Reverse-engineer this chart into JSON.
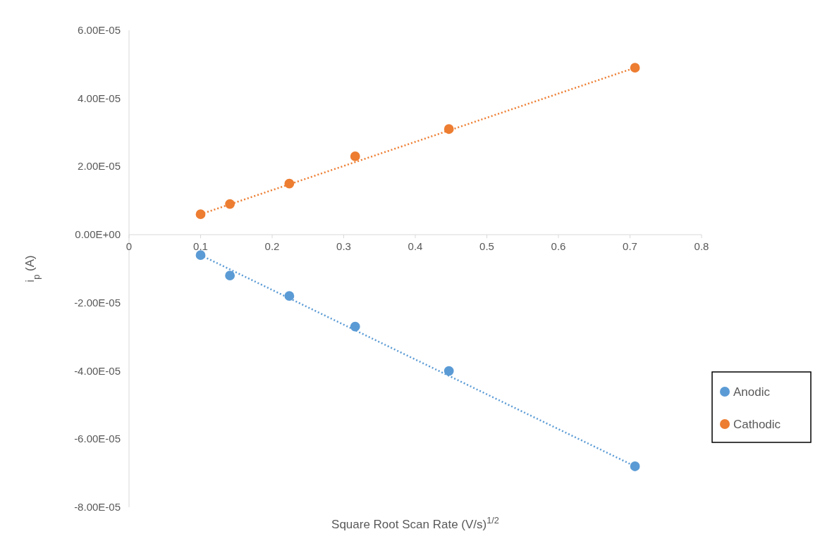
{
  "chart_data": {
    "type": "scatter",
    "xlabel": "Square Root Scan Rate (V/s)$^{1/2}$",
    "ylabel": "i$_{p}$ (A)",
    "xlim": [
      0,
      0.8
    ],
    "xticks": [
      0,
      0.1,
      0.2,
      0.3,
      0.4,
      0.5,
      0.6,
      0.7,
      0.8
    ],
    "ylim": [
      -8e-05,
      6e-05
    ],
    "yticks": [
      {
        "value": -8e-05,
        "label": "-8.00E-05"
      },
      {
        "value": -6e-05,
        "label": "-6.00E-05"
      },
      {
        "value": -4e-05,
        "label": "-4.00E-05"
      },
      {
        "value": -2e-05,
        "label": "-2.00E-05"
      },
      {
        "value": 0,
        "label": "0.00E+00"
      },
      {
        "value": 2e-05,
        "label": "2.00E-05"
      },
      {
        "value": 4e-05,
        "label": "4.00E-05"
      },
      {
        "value": 6e-05,
        "label": "6.00E-05"
      }
    ],
    "grid": false,
    "legend": "right",
    "line_style": "dotted",
    "series": [
      {
        "name": "Anodic",
        "color": "#5b9bd5",
        "marker": "circle",
        "x": [
          0.1,
          0.141,
          0.224,
          0.316,
          0.447,
          0.707
        ],
        "values": [
          -6e-06,
          -1.2e-05,
          -1.8e-05,
          -2.7e-05,
          -4e-05,
          -6.8e-05
        ]
      },
      {
        "name": "Cathodic",
        "color": "#ed7d31",
        "marker": "circle",
        "x": [
          0.1,
          0.141,
          0.224,
          0.316,
          0.447,
          0.707
        ],
        "values": [
          6e-06,
          9e-06,
          1.5e-05,
          2.3e-05,
          3.1e-05,
          4.9e-05
        ]
      },
      {
        "type": "line",
        "color": "#5b9bd5",
        "marker": "none",
        "x": [
          0.1,
          0.707
        ],
        "values": [
          -6e-06,
          -6.8e-05
        ]
      },
      {
        "type": "line",
        "color": "#ed7d31",
        "marker": "none",
        "x": [
          0.1,
          0.707
        ],
        "values": [
          6e-06,
          4.9e-05
        ]
      }
    ]
  }
}
